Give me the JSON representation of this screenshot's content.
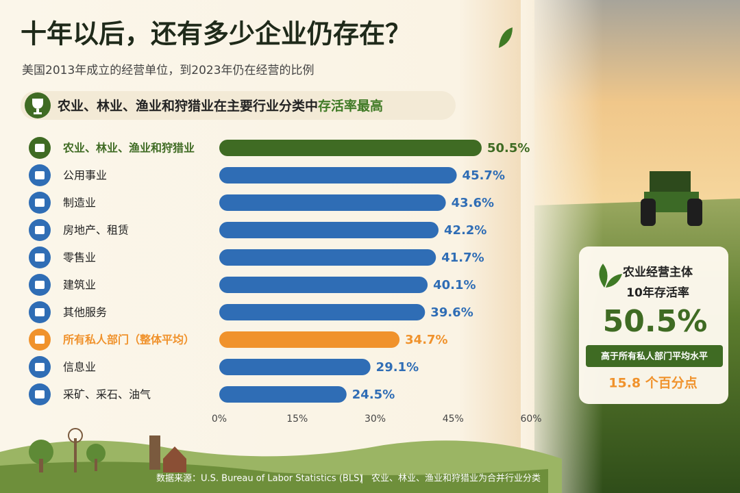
{
  "chart_data": {
    "type": "bar",
    "orientation": "horizontal",
    "title": "十年以后，还有多少企业仍存在？",
    "subtitle": "美国2013年成立的经营单位，到2023年仍在经营的比例",
    "banner": {
      "text": "农业、林业、渔业和狩猎业在主要行业分类中",
      "highlight": "存活率最高"
    },
    "categories": [
      "农业、林业、渔业和狩猎业",
      "公用事业",
      "制造业",
      "房地产、租赁",
      "零售业",
      "建筑业",
      "其他服务",
      "所有私人部门（整体平均）",
      "信息业",
      "采矿、采石、油气"
    ],
    "values": [
      50.5,
      45.7,
      43.6,
      42.2,
      41.7,
      40.1,
      39.6,
      34.7,
      29.1,
      24.5
    ],
    "value_labels": [
      "50.5%",
      "45.7%",
      "43.6%",
      "42.2%",
      "41.7%",
      "40.1%",
      "39.6%",
      "34.7%",
      "29.1%",
      "24.5%"
    ],
    "colors": [
      "#3f6b23",
      "#2f6db5",
      "#2f6db5",
      "#2f6db5",
      "#2f6db5",
      "#2f6db5",
      "#2f6db5",
      "#f0922c",
      "#2f6db5",
      "#2f6db5"
    ],
    "xlim": [
      0,
      60
    ],
    "xticks": [
      {
        "value": 0,
        "label": "0%"
      },
      {
        "value": 15,
        "label": "15%"
      },
      {
        "value": 30,
        "label": "30%"
      },
      {
        "value": 45,
        "label": "45%"
      },
      {
        "value": 60,
        "label": "60%"
      }
    ],
    "grid": false
  },
  "card": {
    "line1": "农业经营主体",
    "line2": "10年存活率",
    "big": "50.5%",
    "ribbon": "高于所有私人部门平均水平",
    "bottom": "15.8 个百分点"
  },
  "footer": {
    "source": "数据来源：U.S. Bureau of Labor Statistics (BLS)",
    "note": "农业、林业、渔业和狩猎业为合并行业分类"
  }
}
